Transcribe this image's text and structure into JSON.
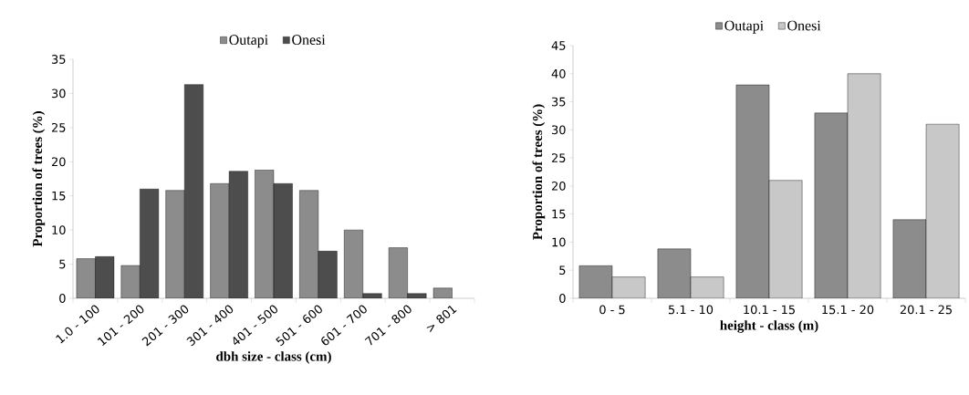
{
  "chart_data": [
    {
      "type": "bar",
      "xlabel": "dbh size - class (cm)",
      "ylabel": "Proportion of trees (%)",
      "categories": [
        "1.0 - 100",
        "101 - 200",
        "201 - 300",
        "301 - 400",
        "401 - 500",
        "501 - 600",
        "601 - 700",
        "701 - 800",
        "> 801"
      ],
      "series": [
        {
          "name": "Outapi",
          "color": "#8c8c8c",
          "values": [
            5.8,
            4.8,
            15.8,
            16.8,
            18.8,
            15.8,
            10,
            7.4,
            1.5
          ]
        },
        {
          "name": "Onesi",
          "color": "#4d4d4d",
          "values": [
            6.1,
            16,
            31.3,
            18.6,
            16.8,
            6.9,
            0.7,
            0.7,
            null
          ]
        }
      ],
      "ylim": [
        0,
        35
      ],
      "yticks": [
        0,
        5,
        10,
        15,
        20,
        25,
        30,
        35
      ],
      "grid": false,
      "legend": "top"
    },
    {
      "type": "bar",
      "xlabel": "height - class (m)",
      "ylabel": "Proportion of trees (%)",
      "categories": [
        "0 - 5",
        "5.1 - 10",
        "10.1 - 15",
        "15.1 - 20",
        "20.1  - 25"
      ],
      "series": [
        {
          "name": "Outapi",
          "color": "#8c8c8c",
          "values": [
            5.8,
            8.8,
            38,
            33,
            14
          ]
        },
        {
          "name": "Onesi",
          "color": "#c8c8c8",
          "values": [
            3.8,
            3.8,
            21,
            40,
            31
          ]
        }
      ],
      "ylim": [
        0,
        45
      ],
      "yticks": [
        0,
        5,
        10,
        15,
        20,
        25,
        30,
        35,
        40,
        45
      ],
      "grid": false,
      "legend": "top"
    }
  ]
}
